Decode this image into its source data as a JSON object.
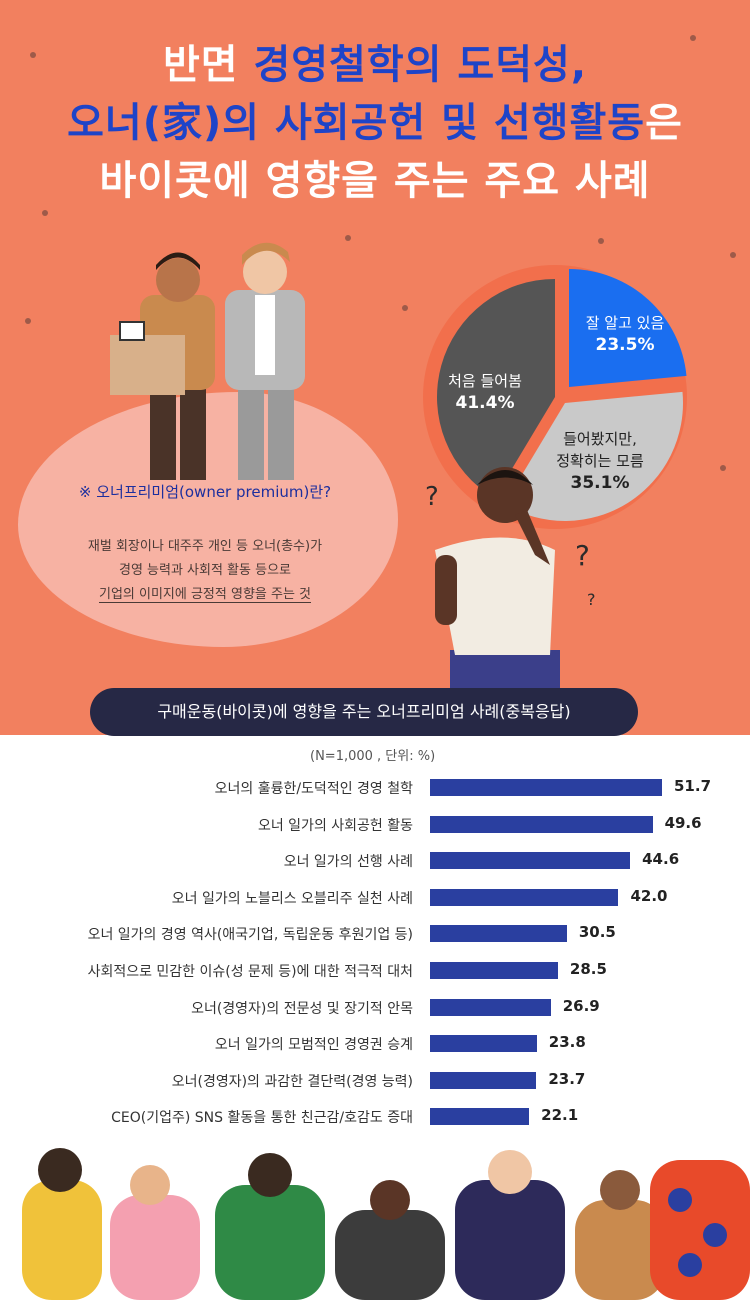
{
  "title": {
    "line1_pre": "반면 ",
    "line1_hl": "경영철학의 도덕성,",
    "line2_hl": "오너(家)의 사회공헌 및 선행활동",
    "line2_post": "은",
    "line3": "바이콧에 영향을 주는 주요 사례"
  },
  "definition": {
    "title": "※ 오너프리미엄(owner premium)란?",
    "line1": "재벌 회장이나 대주주 개인 등 오너(총수)가",
    "line2": "경영 능력과 사회적 활동 등으로",
    "line3": "기업의 이미지에 긍정적 영향을 주는 것"
  },
  "pie": {
    "slices": [
      {
        "label": "잘 알고 있음",
        "value_text": "23.5%",
        "value": 23.5,
        "color": "#1a6ef0",
        "text_color": "#ffffff"
      },
      {
        "label_line1": "들어봤지만,",
        "label_line2": "정확히는 모름",
        "value_text": "35.1%",
        "value": 35.1,
        "color": "#c9c9c9",
        "text_color": "#222222"
      },
      {
        "label": "처음 들어봄",
        "value_text": "41.4%",
        "value": 41.4,
        "color": "#555555",
        "text_color": "#ffffff"
      }
    ]
  },
  "section": {
    "title": "구매운동(바이콧)에 영향을 주는 오너프리미엄 사례(중복응답)",
    "unit": "(N=1,000 , 단위: %)"
  },
  "chart_data": {
    "type": "bar",
    "orientation": "horizontal",
    "title": "구매운동(바이콧)에 영향을 주는 오너프리미엄 사례(중복응답)",
    "categories": [
      "오너의 훌륭한/도덕적인 경영 철학",
      "오너 일가의 사회공헌 활동",
      "오너 일가의 선행 사례",
      "오너 일가의 노블리스 오블리주 실천 사례",
      "오너 일가의 경영 역사(애국기업, 독립운동 후원기업 등)",
      "사회적으로 민감한 이슈(성 문제 등)에 대한 적극적 대처",
      "오너(경영자)의 전문성 및 장기적 안목",
      "오너 일가의 모범적인 경영권 승계",
      "오너(경영자)의 과감한 결단력(경영 능력)",
      "CEO(기업주) SNS 활동을 통한 친근감/호감도 증대"
    ],
    "values": [
      51.7,
      49.6,
      44.6,
      42.0,
      30.5,
      28.5,
      26.9,
      23.8,
      23.7,
      22.1
    ],
    "value_labels": [
      "51.7",
      "49.6",
      "44.6",
      "42.0",
      "30.5",
      "28.5",
      "26.9",
      "23.8",
      "23.7",
      "22.1"
    ],
    "bar_color": "#2a3fa0",
    "xlim": [
      0,
      60
    ]
  }
}
